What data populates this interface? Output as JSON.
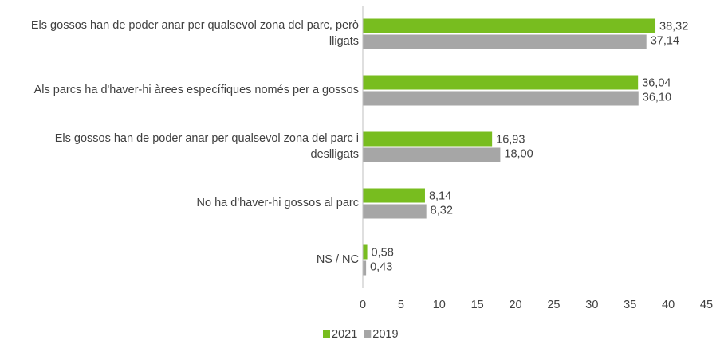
{
  "chart_data": {
    "type": "bar",
    "orientation": "horizontal",
    "categories": [
      "Els gossos han de poder anar per qualsevol zona del parc, però lligats",
      "Als parcs ha d'haver-hi àrees específiques només per a gossos",
      "Els gossos han de poder anar per qualsevol zona del parc i deslligats",
      "No ha d'haver-hi gossos al parc",
      "NS / NC"
    ],
    "series": [
      {
        "name": "2021",
        "color": "#78bd1f",
        "values": [
          38.32,
          36.04,
          16.93,
          8.14,
          0.58
        ],
        "value_labels": [
          "38,32",
          "36,04",
          "16,93",
          "8,14",
          "0,58"
        ]
      },
      {
        "name": "2019",
        "color": "#a6a6a6",
        "values": [
          37.14,
          36.1,
          18.0,
          8.32,
          0.43
        ],
        "value_labels": [
          "37,14",
          "36,10",
          "18,00",
          "8,32",
          "0,43"
        ]
      }
    ],
    "xlim": [
      0,
      45
    ],
    "xticks": [
      0,
      5,
      10,
      15,
      20,
      25,
      30,
      35,
      40,
      45
    ],
    "grid": false,
    "legend": "bottom"
  }
}
